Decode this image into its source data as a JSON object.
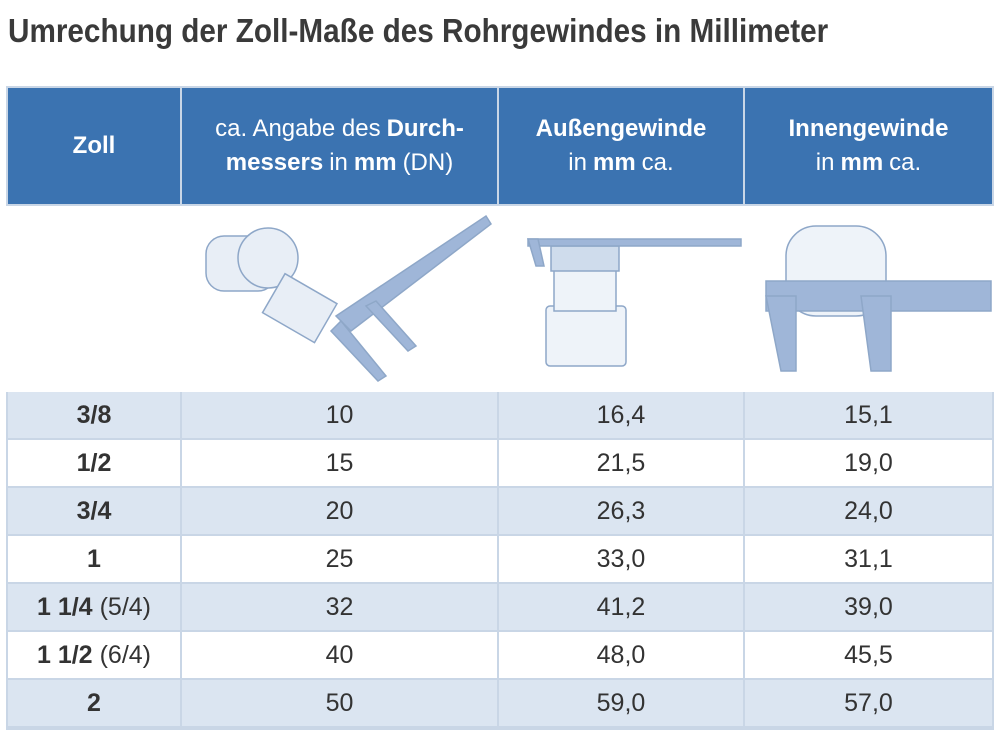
{
  "header": {
    "title": "Umrechung der Zoll-Maße des Rohrgewindes in Millimeter"
  },
  "table": {
    "columns": [
      {
        "lines": [
          [
            {
              "text": "Zoll",
              "bold": true
            }
          ]
        ]
      },
      {
        "lines": [
          [
            {
              "text": "ca. Angabe des",
              "bold": false
            },
            {
              "text": "Durch-",
              "bold": true
            }
          ],
          [
            {
              "text": "messers",
              "bold": true
            },
            {
              "text": "in",
              "bold": false
            },
            {
              "text": "mm",
              "bold": true
            },
            {
              "text": "(DN)",
              "bold": false
            }
          ]
        ]
      },
      {
        "lines": [
          [
            {
              "text": "Außengewinde",
              "bold": true
            }
          ],
          [
            {
              "text": "in",
              "bold": false
            },
            {
              "text": "mm",
              "bold": true
            },
            {
              "text": "ca.",
              "bold": false
            }
          ]
        ]
      },
      {
        "lines": [
          [
            {
              "text": "Innengewinde",
              "bold": true
            }
          ],
          [
            {
              "text": "in",
              "bold": false
            },
            {
              "text": "mm",
              "bold": true
            },
            {
              "text": "ca.",
              "bold": false
            }
          ]
        ]
      }
    ],
    "rows": [
      {
        "zoll": "3/8",
        "dn": "10",
        "aussen": "16,4",
        "innen": "15,1"
      },
      {
        "zoll": "1/2",
        "dn": "15",
        "aussen": "21,5",
        "innen": "19,0"
      },
      {
        "zoll": "3/4",
        "dn": "20",
        "aussen": "26,3",
        "innen": "24,0"
      },
      {
        "zoll": "1",
        "dn": "25",
        "aussen": "33,0",
        "innen": "31,1"
      },
      {
        "zoll": "1 1/4",
        "zoll_alt": "(5/4)",
        "dn": "32",
        "aussen": "41,2",
        "innen": "39,0"
      },
      {
        "zoll": "1 1/2",
        "zoll_alt": "(6/4)",
        "dn": "40",
        "aussen": "48,0",
        "innen": "45,5"
      },
      {
        "zoll": "2",
        "dn": "50",
        "aussen": "59,0",
        "innen": "57,0"
      }
    ]
  }
}
